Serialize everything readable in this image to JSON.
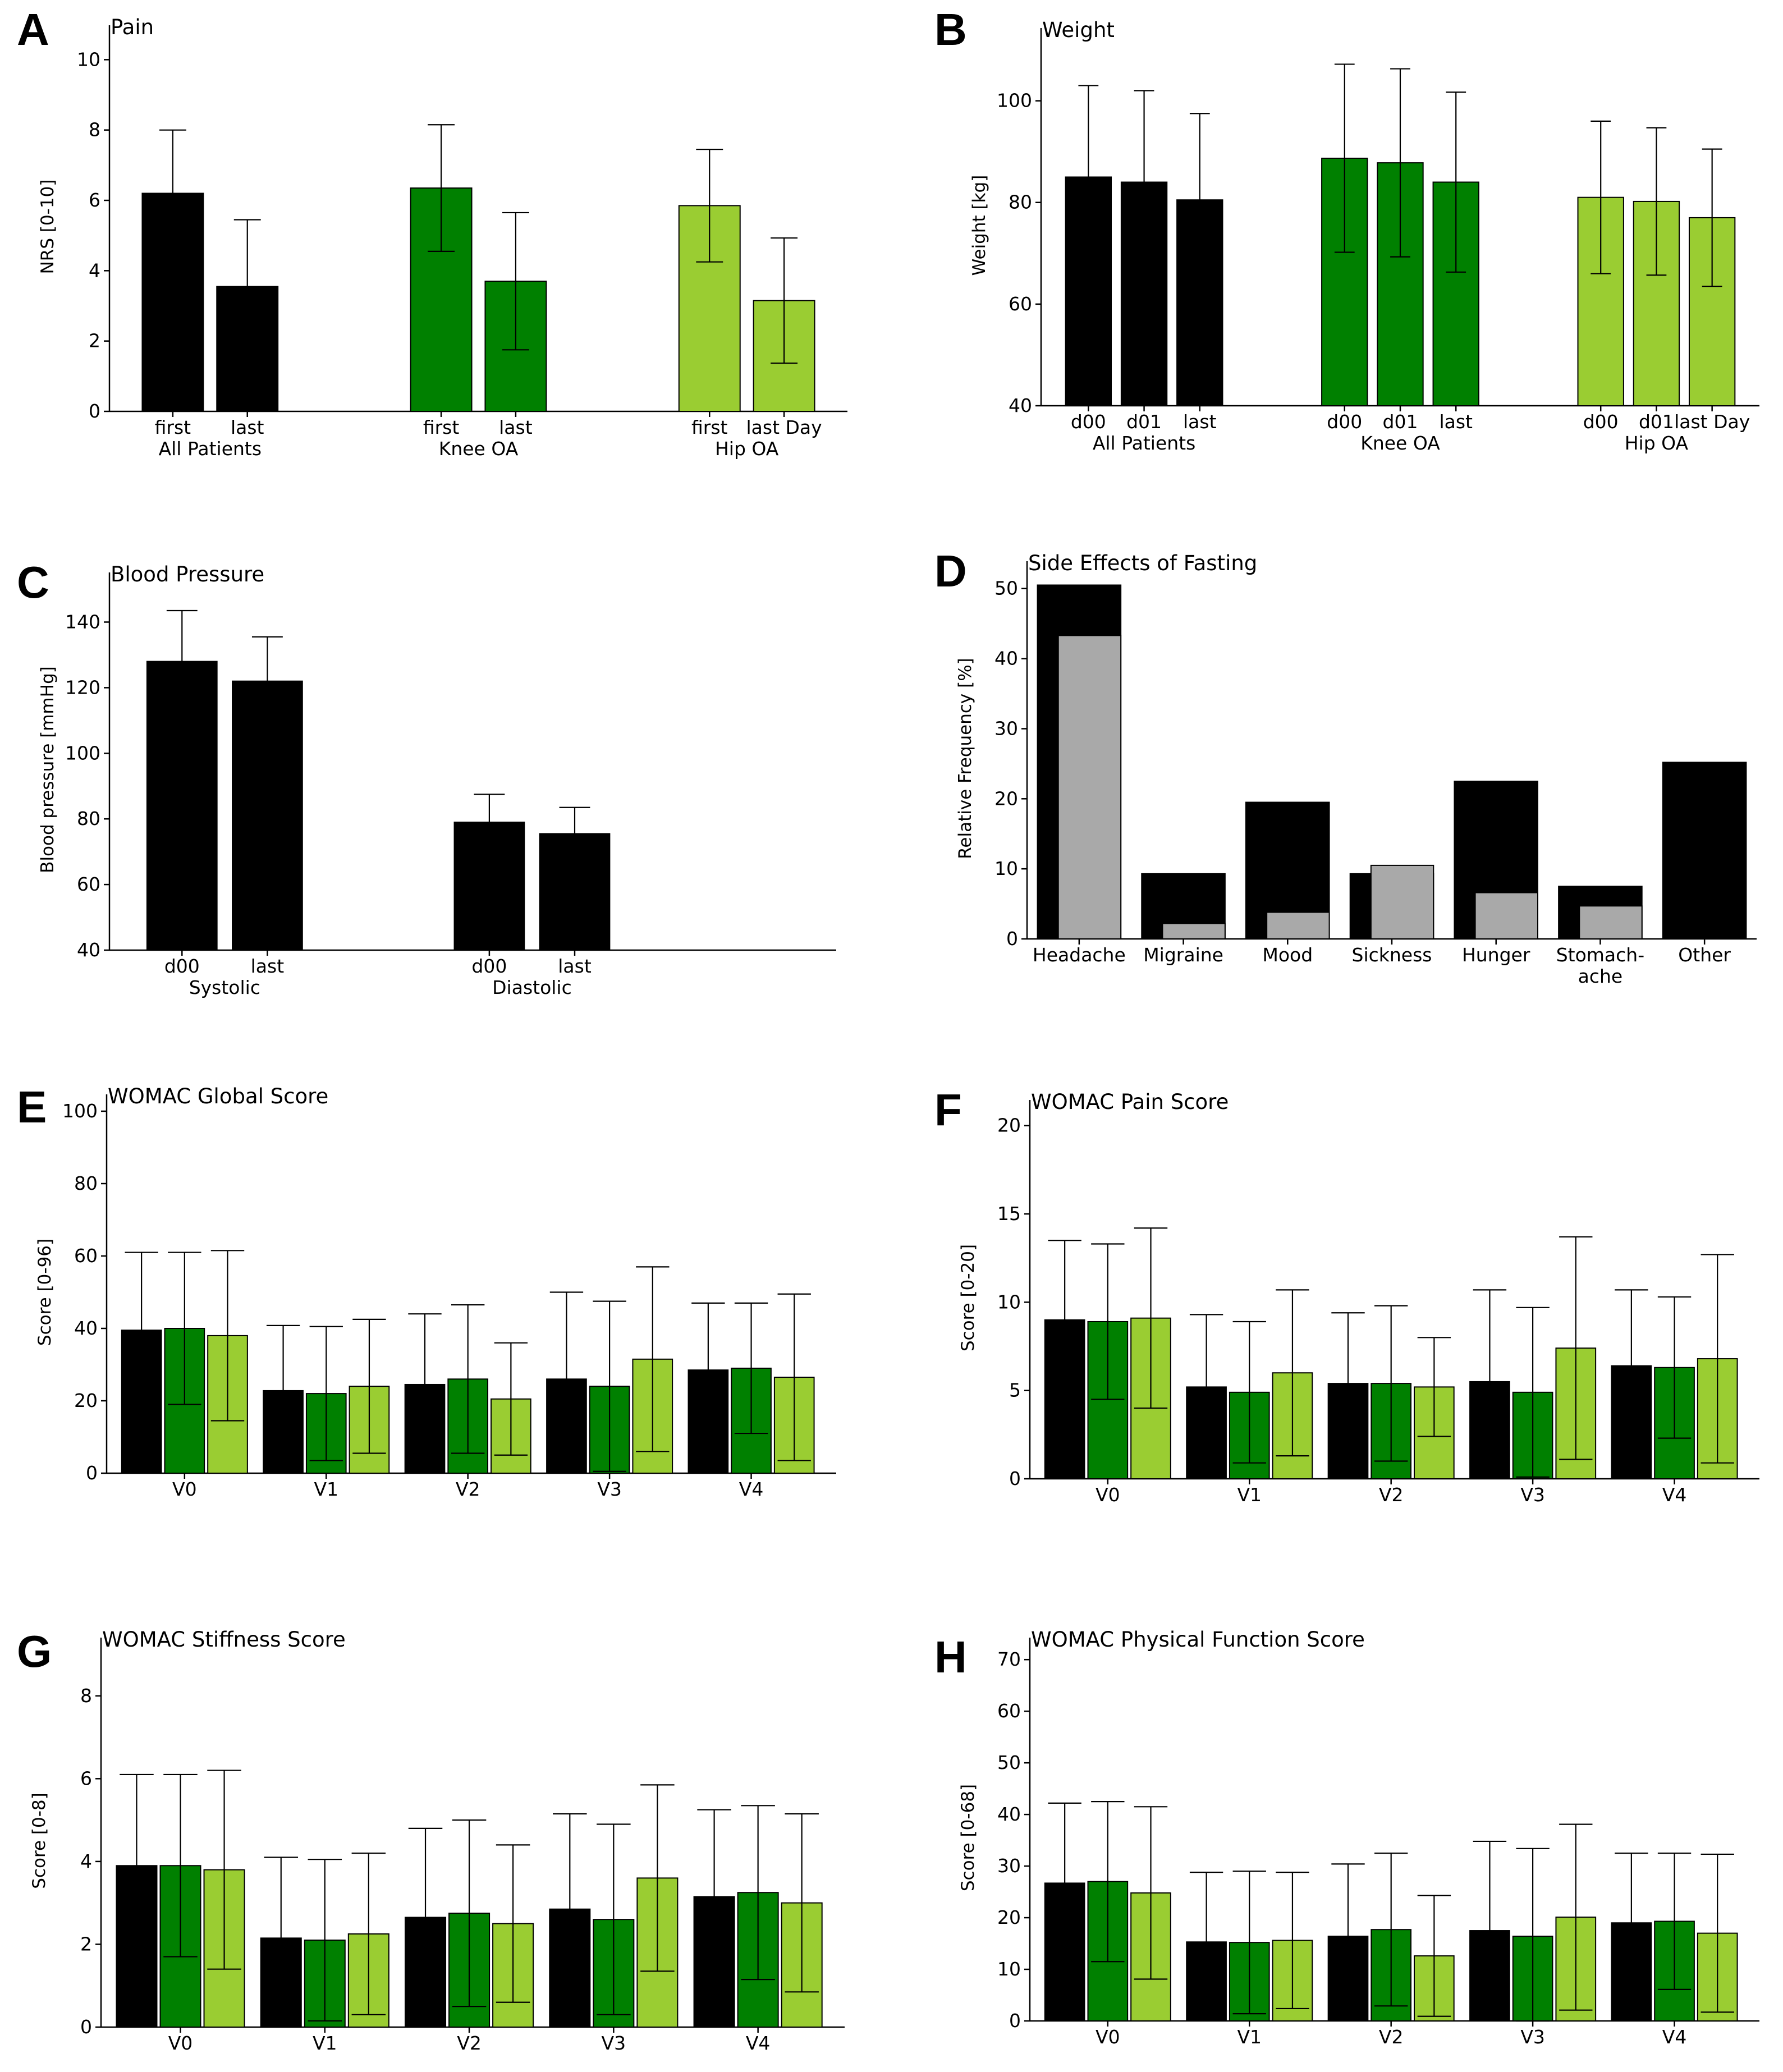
{
  "colors": {
    "all": "#000000",
    "knee": "#008000",
    "hip": "#9acd32",
    "grey": "#a9a9a9",
    "edge": "#000000"
  },
  "chart_data": [
    {
      "panel": "A",
      "type": "bar",
      "title": "Pain",
      "ylabel": "NRS [0-10]",
      "xlabel": "",
      "ylim": [
        0,
        10.5
      ],
      "yticks": [
        0,
        2,
        4,
        6,
        8,
        10
      ],
      "groups": [
        {
          "label": "All Patients",
          "color_key": "all",
          "bars": [
            {
              "label": "first",
              "value": 6.2,
              "err": 1.8
            },
            {
              "label": "last",
              "value": 3.55,
              "err": 1.9
            }
          ]
        },
        {
          "label": "Knee OA",
          "color_key": "knee",
          "bars": [
            {
              "label": "first",
              "value": 6.35,
              "err": 1.8
            },
            {
              "label": "last",
              "value": 3.7,
              "err": 1.95
            }
          ]
        },
        {
          "label": "Hip OA",
          "color_key": "hip",
          "bars": [
            {
              "label": "first",
              "value": 5.85,
              "err": 1.6
            },
            {
              "label": "last Day",
              "value": 3.15,
              "err": 1.78
            }
          ]
        }
      ]
    },
    {
      "panel": "B",
      "type": "bar",
      "title": "Weight",
      "ylabel": "Weight [kg]",
      "xlabel": "",
      "ylim": [
        40,
        111
      ],
      "yticks": [
        40,
        60,
        80,
        100
      ],
      "groups": [
        {
          "label": "All Patients",
          "color_key": "all",
          "bars": [
            {
              "label": "d00",
              "value": 85,
              "err": 18
            },
            {
              "label": "d01",
              "value": 84,
              "err": 18
            },
            {
              "label": "last",
              "value": 80.5,
              "err": 17
            }
          ]
        },
        {
          "label": "Knee OA",
          "color_key": "knee",
          "bars": [
            {
              "label": "d00",
              "value": 88.7,
              "err": 18.5
            },
            {
              "label": "d01",
              "value": 87.8,
              "err": 18.5
            },
            {
              "label": "last",
              "value": 84,
              "err": 17.7
            }
          ]
        },
        {
          "label": "Hip OA",
          "color_key": "hip",
          "bars": [
            {
              "label": "d00",
              "value": 81,
              "err": 15
            },
            {
              "label": "d01",
              "value": 80.2,
              "err": 14.5
            },
            {
              "label": "last Day",
              "value": 77,
              "err": 13.5
            }
          ]
        }
      ]
    },
    {
      "panel": "C",
      "type": "bar",
      "title": "Blood Pressure",
      "ylabel": "Blood pressure [mmHg]",
      "xlabel": "",
      "ylim": [
        40,
        150
      ],
      "yticks": [
        40,
        60,
        80,
        100,
        120,
        140
      ],
      "xmax_frac": 0.75,
      "groups": [
        {
          "label": "Systolic",
          "color_key": "all",
          "bars": [
            {
              "label": "d00",
              "value": 128,
              "err": 15.5
            },
            {
              "label": "last",
              "value": 122,
              "err": 13.5
            }
          ]
        },
        {
          "label": "Diastolic",
          "color_key": "all",
          "bars": [
            {
              "label": "d00",
              "value": 79,
              "err": 8.5
            },
            {
              "label": "last",
              "value": 75.5,
              "err": 8
            }
          ]
        }
      ]
    },
    {
      "panel": "D",
      "type": "bar",
      "title": "Side Effects of Fasting",
      "ylabel": "Relative Frequency [%]",
      "xlabel": "",
      "ylim": [
        0,
        51.5
      ],
      "yticks": [
        0,
        10,
        20,
        30,
        40,
        50
      ],
      "categories": [
        "Headache",
        "Migraine",
        "Mood",
        "Sickness",
        "Hunger",
        "Stomach-\nache",
        "Other"
      ],
      "series": [
        {
          "name": "black",
          "color_key": "all",
          "values": [
            50.5,
            9.3,
            19.5,
            9.3,
            22.5,
            7.5,
            25.2
          ]
        },
        {
          "name": "grey",
          "color_key": "grey",
          "values": [
            43.3,
            2.2,
            3.8,
            10.5,
            6.6,
            4.7,
            0
          ]
        }
      ]
    },
    {
      "panel": "E",
      "type": "bar",
      "title": "WOMAC Global Score",
      "ylabel": "Score [0-96]",
      "xlabel": "",
      "ylim": [
        0,
        100
      ],
      "yticks": [
        0,
        20,
        40,
        60,
        80,
        100
      ],
      "categories": [
        "V0",
        "V1",
        "V2",
        "V3",
        "V4"
      ],
      "series": [
        {
          "name": "all",
          "color_key": "all",
          "values": [
            39.5,
            22.8,
            24.5,
            26,
            28.5
          ],
          "err": [
            21.5,
            18,
            19.5,
            24,
            18.5
          ]
        },
        {
          "name": "knee",
          "color_key": "knee",
          "values": [
            40,
            22,
            26,
            24,
            29
          ],
          "err": [
            21,
            18.5,
            20.5,
            23.5,
            18
          ]
        },
        {
          "name": "hip",
          "color_key": "hip",
          "values": [
            38,
            24,
            20.5,
            31.5,
            26.5
          ],
          "err": [
            23.5,
            18.5,
            15.5,
            25.5,
            23
          ]
        }
      ]
    },
    {
      "panel": "F",
      "type": "bar",
      "title": "WOMAC Pain Score",
      "ylabel": "Score [0-20]",
      "xlabel": "",
      "ylim": [
        0,
        20.5
      ],
      "yticks": [
        0,
        5,
        10,
        15,
        20
      ],
      "categories": [
        "V0",
        "V1",
        "V2",
        "V3",
        "V4"
      ],
      "series": [
        {
          "name": "all",
          "color_key": "all",
          "values": [
            9,
            5.2,
            5.4,
            5.5,
            6.4
          ],
          "err": [
            4.5,
            4.1,
            4,
            5.2,
            4.3
          ]
        },
        {
          "name": "knee",
          "color_key": "knee",
          "values": [
            8.9,
            4.9,
            5.4,
            4.9,
            6.3
          ],
          "err": [
            4.4,
            4,
            4.4,
            4.8,
            4
          ]
        },
        {
          "name": "hip",
          "color_key": "hip",
          "values": [
            9.1,
            6,
            5.2,
            7.4,
            6.8
          ],
          "err": [
            5.1,
            4.7,
            2.8,
            6.3,
            5.9
          ]
        }
      ]
    },
    {
      "panel": "G",
      "type": "bar",
      "title": "WOMAC Stiffness Score",
      "ylabel": "Score [0-8]",
      "xlabel": "",
      "ylim": [
        0,
        9
      ],
      "yticks": [
        0,
        2,
        4,
        6,
        8
      ],
      "categories": [
        "V0",
        "V1",
        "V2",
        "V3",
        "V4"
      ],
      "series": [
        {
          "name": "all",
          "color_key": "all",
          "values": [
            3.9,
            2.15,
            2.65,
            2.85,
            3.15
          ],
          "err": [
            2.2,
            1.95,
            2.15,
            2.3,
            2.1
          ]
        },
        {
          "name": "knee",
          "color_key": "knee",
          "values": [
            3.9,
            2.1,
            2.75,
            2.6,
            3.25
          ],
          "err": [
            2.2,
            1.95,
            2.25,
            2.3,
            2.1
          ]
        },
        {
          "name": "hip",
          "color_key": "hip",
          "values": [
            3.8,
            2.25,
            2.5,
            3.6,
            3.0
          ],
          "err": [
            2.4,
            1.95,
            1.9,
            2.25,
            2.15
          ]
        }
      ]
    },
    {
      "panel": "H",
      "type": "bar",
      "title": "WOMAC Physical Function Score",
      "ylabel": "Score [0-68]",
      "xlabel": "",
      "ylim": [
        0,
        71
      ],
      "yticks": [
        0,
        10,
        20,
        30,
        40,
        50,
        60,
        70
      ],
      "categories": [
        "V0",
        "V1",
        "V2",
        "V3",
        "V4"
      ],
      "series": [
        {
          "name": "all",
          "color_key": "all",
          "values": [
            26.7,
            15.3,
            16.4,
            17.5,
            19
          ],
          "err": [
            15.5,
            13.5,
            14,
            17.3,
            13.5
          ]
        },
        {
          "name": "knee",
          "color_key": "knee",
          "values": [
            27,
            15.2,
            17.7,
            16.4,
            19.3
          ],
          "err": [
            15.5,
            13.8,
            14.8,
            17,
            13.2
          ]
        },
        {
          "name": "hip",
          "color_key": "hip",
          "values": [
            24.8,
            15.6,
            12.6,
            20.1,
            17
          ],
          "err": [
            16.7,
            13.2,
            11.7,
            18,
            15.3
          ]
        }
      ]
    }
  ]
}
